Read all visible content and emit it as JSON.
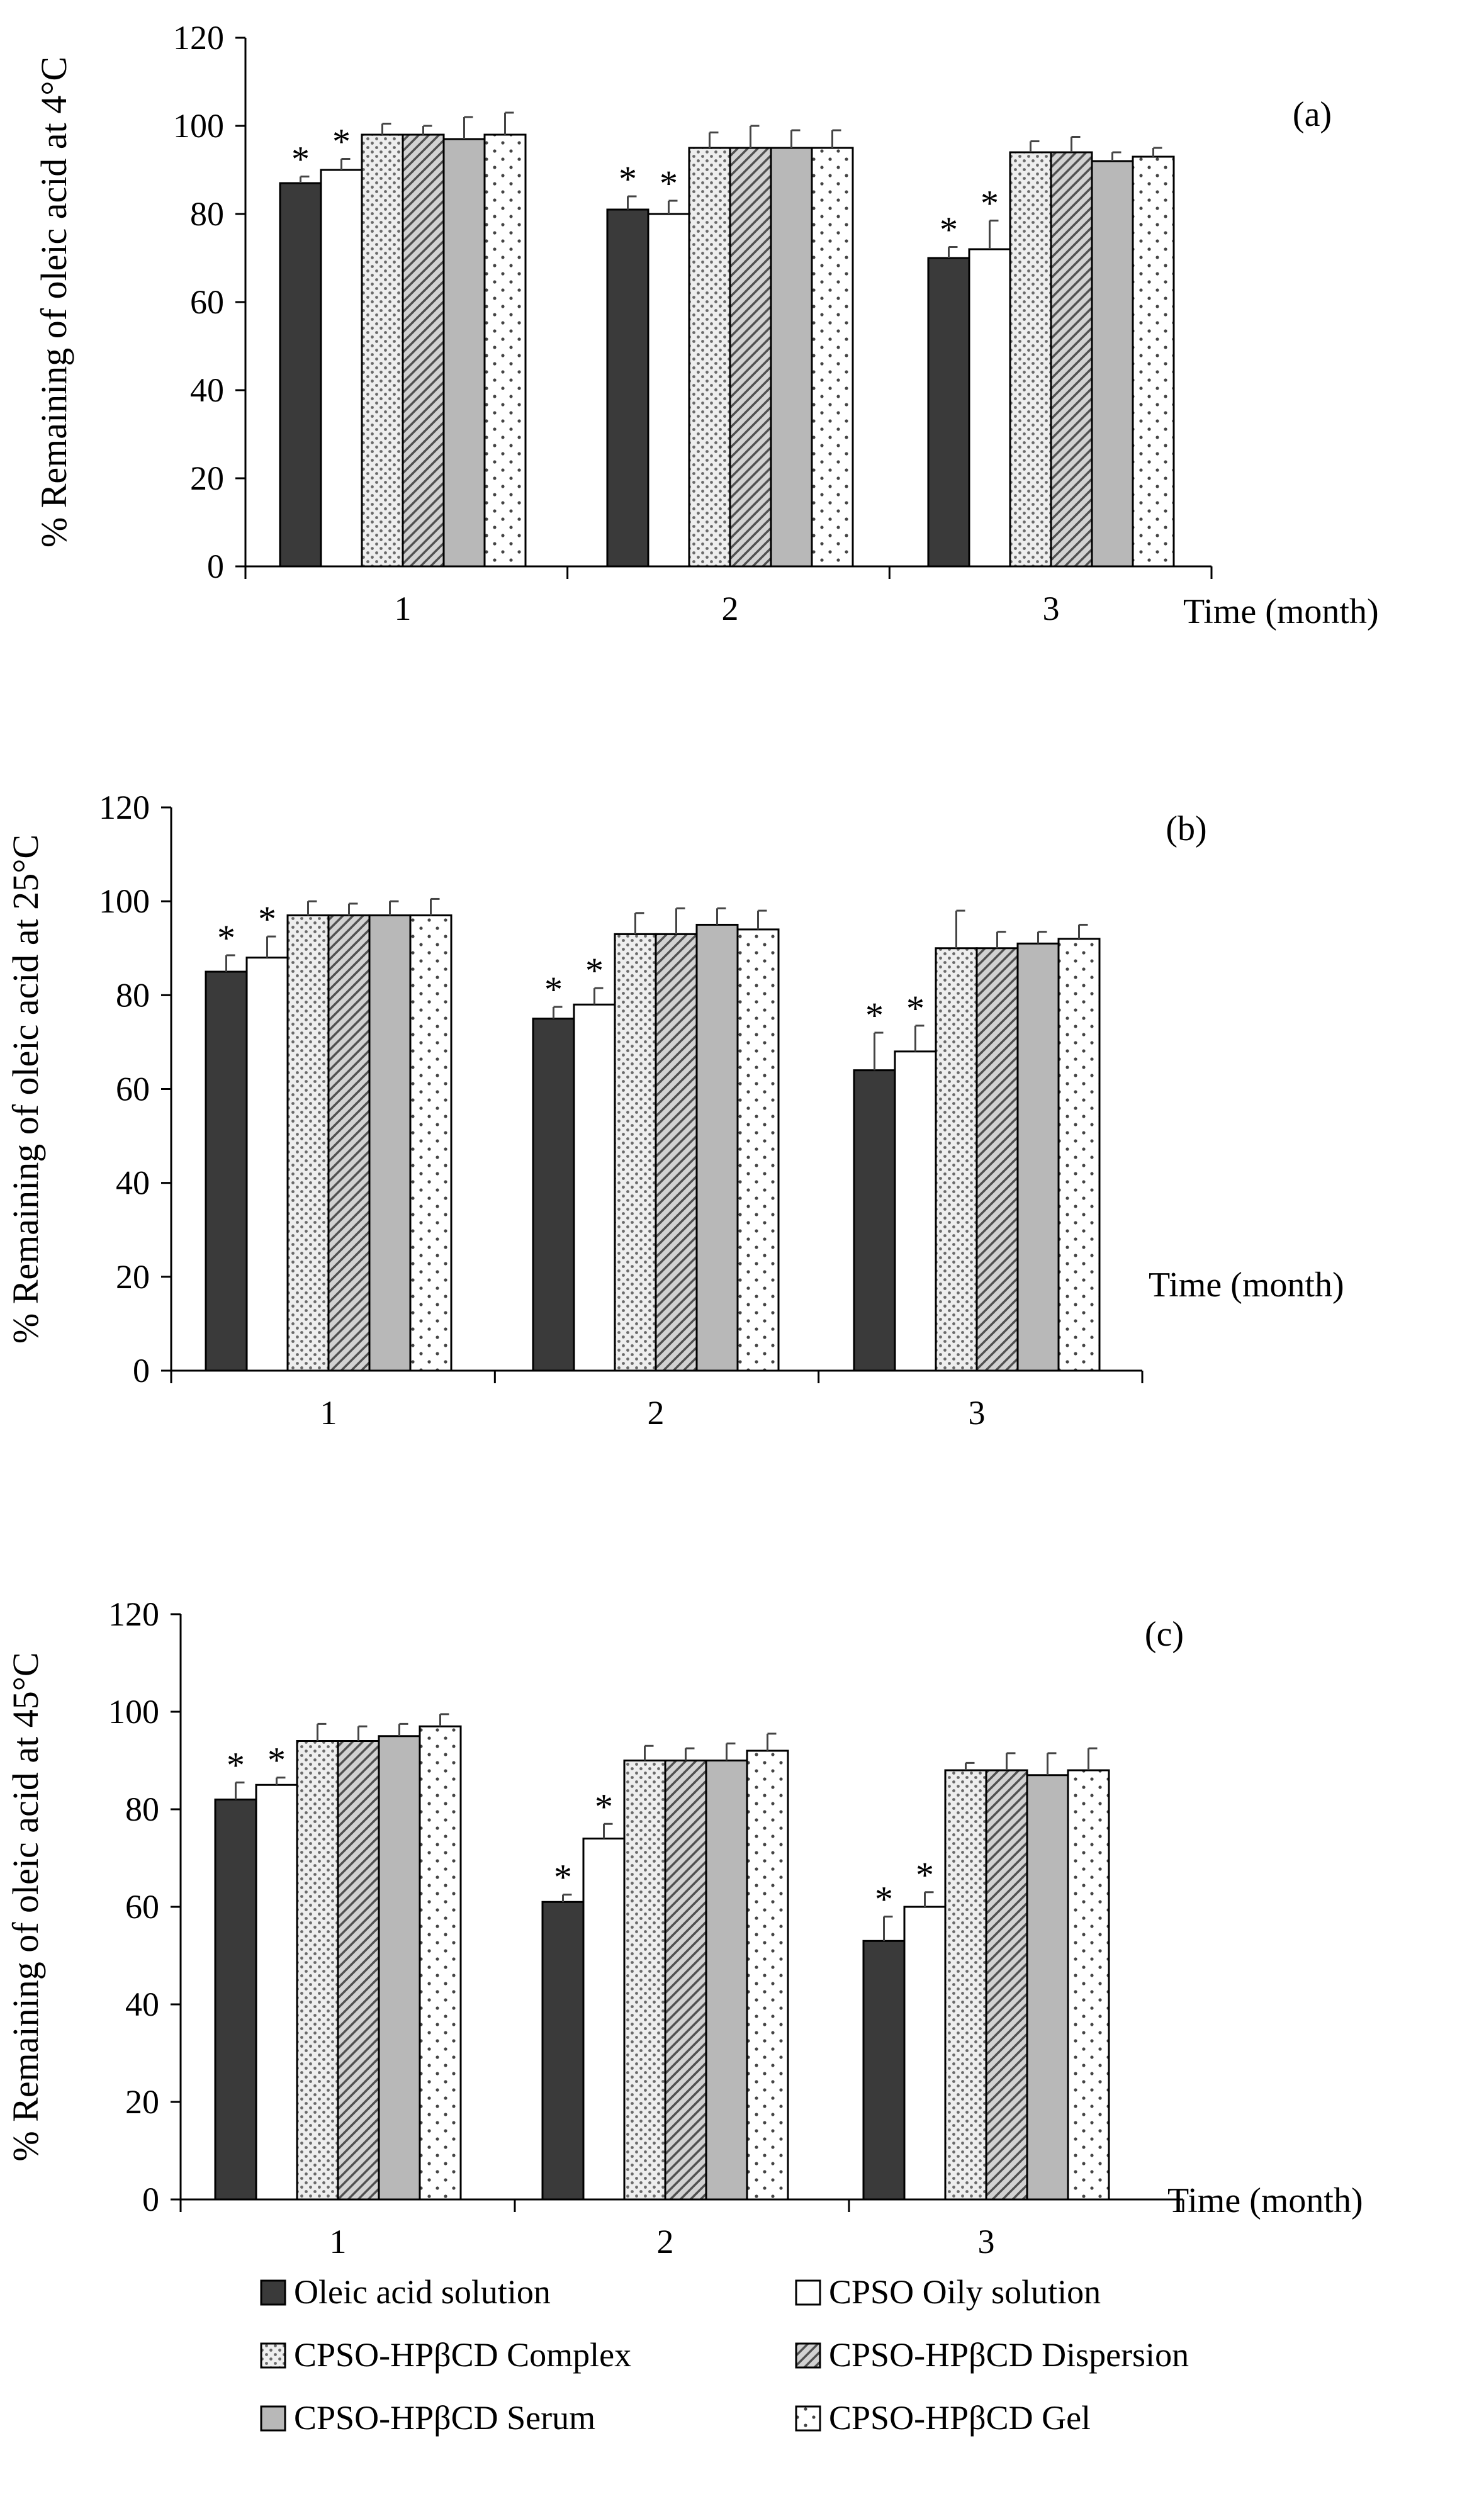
{
  "chart_data": [
    {
      "type": "bar",
      "panel_label": "(a)",
      "ylabel": "% Remaining of oleic acid at 4°C",
      "xlabel": "Time (month)",
      "ylim": [
        0,
        120
      ],
      "yticks": [
        "0",
        "20",
        "40",
        "60",
        "80",
        "100",
        "120"
      ],
      "categories": [
        "1",
        "2",
        "3"
      ],
      "series": [
        {
          "name": "Oleic acid solution",
          "values": [
            87,
            81,
            70
          ],
          "errors": [
            1.5,
            3,
            2.5
          ],
          "significant": [
            true,
            true,
            true
          ]
        },
        {
          "name": "CPSO Oily solution",
          "values": [
            90,
            80,
            72
          ],
          "errors": [
            2.5,
            3,
            6.5
          ],
          "significant": [
            true,
            true,
            true
          ]
        },
        {
          "name": "CPSO-HPβCD Complex",
          "values": [
            98,
            95,
            94
          ],
          "errors": [
            2.5,
            3.5,
            2.5
          ],
          "significant": [
            false,
            false,
            false
          ]
        },
        {
          "name": "CPSO-HPβCD Dispersion",
          "values": [
            98,
            95,
            94
          ],
          "errors": [
            2,
            5,
            3.5
          ],
          "significant": [
            false,
            false,
            false
          ]
        },
        {
          "name": "CPSO-HPβCD Serum",
          "values": [
            97,
            95,
            92
          ],
          "errors": [
            5,
            4,
            2
          ],
          "significant": [
            false,
            false,
            false
          ]
        },
        {
          "name": "CPSO-HPβCD Gel",
          "values": [
            98,
            95,
            93
          ],
          "errors": [
            5,
            4,
            2
          ],
          "significant": [
            false,
            false,
            false
          ]
        }
      ]
    },
    {
      "type": "bar",
      "panel_label": "(b)",
      "ylabel": "% Remaining of oleic acid at 25°C",
      "xlabel": "Time (month)",
      "ylim": [
        0,
        120
      ],
      "yticks": [
        "0",
        "20",
        "40",
        "60",
        "80",
        "100",
        "120"
      ],
      "categories": [
        "1",
        "2",
        "3"
      ],
      "series": [
        {
          "name": "Oleic acid solution",
          "values": [
            85,
            75,
            64
          ],
          "errors": [
            3.5,
            2.5,
            8
          ],
          "significant": [
            true,
            true,
            true
          ]
        },
        {
          "name": "CPSO Oily solution",
          "values": [
            88,
            78,
            68
          ],
          "errors": [
            4.5,
            3.5,
            5.5
          ],
          "significant": [
            true,
            true,
            true
          ]
        },
        {
          "name": "CPSO-HPβCD Complex",
          "values": [
            97,
            93,
            90
          ],
          "errors": [
            3,
            4.5,
            8
          ],
          "significant": [
            false,
            false,
            false
          ]
        },
        {
          "name": "CPSO-HPβCD Dispersion",
          "values": [
            97,
            93,
            90
          ],
          "errors": [
            2.5,
            5.5,
            3.5
          ],
          "significant": [
            false,
            false,
            false
          ]
        },
        {
          "name": "CPSO-HPβCD Serum",
          "values": [
            97,
            95,
            91
          ],
          "errors": [
            3,
            3.5,
            2.5
          ],
          "significant": [
            false,
            false,
            false
          ]
        },
        {
          "name": "CPSO-HPβCD Gel",
          "values": [
            97,
            94,
            92
          ],
          "errors": [
            3.5,
            4,
            3
          ],
          "significant": [
            false,
            false,
            false
          ]
        }
      ]
    },
    {
      "type": "bar",
      "panel_label": "(c)",
      "ylabel": "% Remaining of oleic acid at 45°C",
      "xlabel": "Time (month)",
      "ylim": [
        0,
        120
      ],
      "yticks": [
        "0",
        "20",
        "40",
        "60",
        "80",
        "100",
        "120"
      ],
      "categories": [
        "1",
        "2",
        "3"
      ],
      "series": [
        {
          "name": "Oleic acid solution",
          "values": [
            82,
            61,
            53
          ],
          "errors": [
            3.5,
            1.5,
            5
          ],
          "significant": [
            true,
            true,
            true
          ]
        },
        {
          "name": "CPSO Oily solution",
          "values": [
            85,
            74,
            60
          ],
          "errors": [
            1.5,
            3,
            3
          ],
          "significant": [
            true,
            true,
            true
          ]
        },
        {
          "name": "CPSO-HPβCD Complex",
          "values": [
            94,
            90,
            88
          ],
          "errors": [
            3.5,
            3,
            1.5
          ],
          "significant": [
            false,
            false,
            false
          ]
        },
        {
          "name": "CPSO-HPβCD Dispersion",
          "values": [
            94,
            90,
            88
          ],
          "errors": [
            3,
            2.5,
            3.5
          ],
          "significant": [
            false,
            false,
            false
          ]
        },
        {
          "name": "CPSO-HPβCD Serum",
          "values": [
            95,
            90,
            87
          ],
          "errors": [
            2.5,
            3.5,
            4.5
          ],
          "significant": [
            false,
            false,
            false
          ]
        },
        {
          "name": "CPSO-HPβCD Gel",
          "values": [
            97,
            92,
            88
          ],
          "errors": [
            2.5,
            3.5,
            4.5
          ],
          "significant": [
            false,
            false,
            false
          ]
        }
      ]
    }
  ],
  "legend": [
    {
      "name": "Oleic acid solution",
      "style": "solid-dark"
    },
    {
      "name": "CPSO Oily solution",
      "style": "white"
    },
    {
      "name": "CPSO-HPβCD Complex",
      "style": "dots"
    },
    {
      "name": "CPSO-HPβCD Dispersion",
      "style": "diagonal"
    },
    {
      "name": "CPSO-HPβCD Serum",
      "style": "solid-gray"
    },
    {
      "name": "CPSO-HPβCD Gel",
      "style": "sparse-dots"
    }
  ],
  "significance_marker": "*",
  "colors": {
    "dark": "#3a3a3a",
    "gray": "#b8b8b8",
    "white": "#ffffff",
    "ink": "#000000"
  }
}
